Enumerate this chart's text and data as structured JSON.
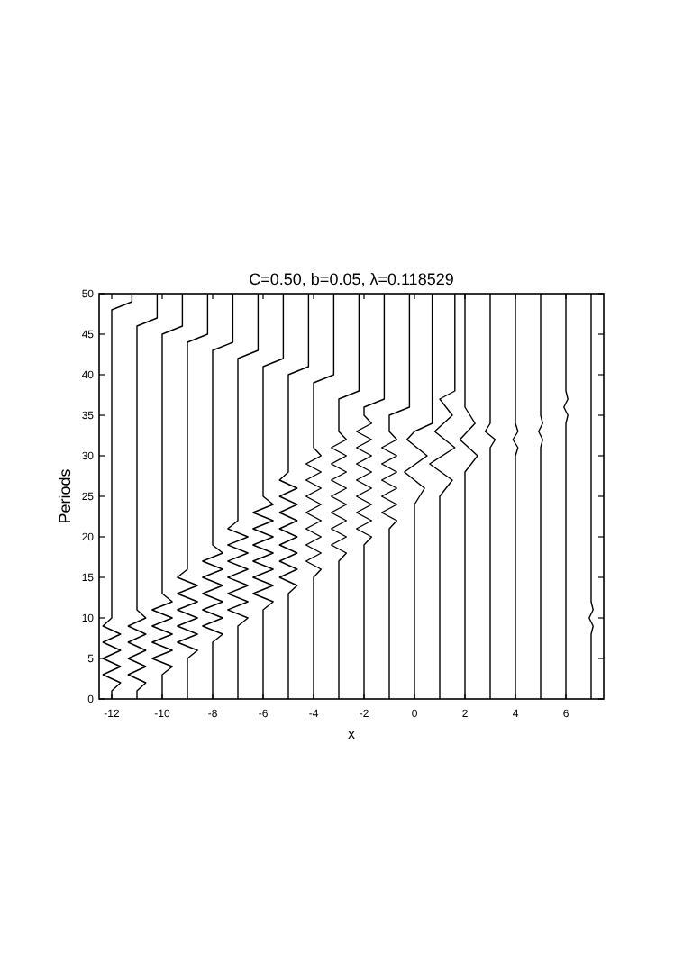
{
  "chart_data": {
    "type": "line",
    "title": "C=0.50, b=0.05, λ=0.118529",
    "xlabel": "x",
    "ylabel": "Periods",
    "xlim": [
      -12.5,
      7.5
    ],
    "ylim": [
      0,
      50
    ],
    "xticks": [
      -12,
      -10,
      -8,
      -6,
      -4,
      -2,
      0,
      2,
      4,
      6
    ],
    "yticks": [
      0,
      5,
      10,
      15,
      20,
      25,
      30,
      35,
      40,
      45,
      50
    ],
    "marker": "none",
    "line_style": "solid",
    "series": [
      {
        "color": "#000000",
        "x": [
          -12,
          -12,
          -11.65,
          -12.35,
          -11.65,
          -12.35,
          -11.65,
          -12.35,
          -11.65,
          -12.35,
          -12,
          -12,
          -11.2,
          -11.2
        ],
        "values": [
          0,
          1,
          2,
          3,
          4,
          5,
          6,
          7,
          8,
          9,
          10,
          48,
          49,
          50
        ]
      },
      {
        "color": "#000000",
        "x": [
          -11,
          -11,
          -10.65,
          -11.35,
          -10.65,
          -11.35,
          -10.65,
          -11.35,
          -10.65,
          -11.35,
          -10.65,
          -11,
          -11,
          -10.2,
          -10.2
        ],
        "values": [
          0,
          1,
          2,
          3,
          4,
          5,
          6,
          7,
          8,
          9,
          10,
          11,
          46,
          47,
          50
        ]
      },
      {
        "color": "#000000",
        "x": [
          -10,
          -10,
          -9.6,
          -10.4,
          -9.6,
          -10.4,
          -9.6,
          -10.4,
          -9.6,
          -10.4,
          -9.6,
          -10,
          -10,
          -9.2,
          -9.2
        ],
        "values": [
          0,
          3,
          4,
          5,
          6,
          7,
          8,
          9,
          10,
          11,
          12,
          13,
          45,
          46,
          50
        ]
      },
      {
        "color": "#000000",
        "x": [
          -9,
          -9,
          -8.6,
          -9.4,
          -8.6,
          -9.4,
          -8.6,
          -9.4,
          -8.6,
          -9.4,
          -8.6,
          -9.4,
          -9,
          -9,
          -8.2,
          -8.2
        ],
        "values": [
          0,
          5,
          6,
          7,
          8,
          9,
          10,
          11,
          12,
          13,
          14,
          15,
          16,
          44,
          45,
          50
        ]
      },
      {
        "color": "#000000",
        "x": [
          -8,
          -8,
          -7.6,
          -8.4,
          -7.6,
          -8.4,
          -7.6,
          -8.4,
          -7.6,
          -8.4,
          -7.6,
          -8.4,
          -7.6,
          -8,
          -8,
          -7.2,
          -7.2
        ],
        "values": [
          0,
          7,
          8,
          9,
          10,
          11,
          12,
          13,
          14,
          15,
          16,
          17,
          18,
          19,
          43,
          44,
          50
        ]
      },
      {
        "color": "#000000",
        "x": [
          -7,
          -7,
          -6.6,
          -7.4,
          -6.6,
          -7.4,
          -6.6,
          -7.4,
          -6.6,
          -7.4,
          -6.6,
          -7.4,
          -6.6,
          -7.4,
          -7,
          -7,
          -6.2,
          -6.2
        ],
        "values": [
          0,
          9,
          10,
          11,
          12,
          13,
          14,
          15,
          16,
          17,
          18,
          19,
          20,
          21,
          22,
          42,
          43,
          50
        ]
      },
      {
        "color": "#000000",
        "x": [
          -6,
          -6,
          -5.6,
          -6.4,
          -5.6,
          -6.4,
          -5.6,
          -6.4,
          -5.6,
          -6.4,
          -5.6,
          -6.4,
          -5.6,
          -6.4,
          -5.6,
          -6,
          -6,
          -5.2,
          -5.2
        ],
        "values": [
          0,
          11,
          12,
          13,
          14,
          15,
          16,
          17,
          18,
          19,
          20,
          21,
          22,
          23,
          24,
          25,
          41,
          42,
          50
        ]
      },
      {
        "color": "#000000",
        "x": [
          -5,
          -5,
          -4.65,
          -5.35,
          -4.65,
          -5.35,
          -4.65,
          -5.35,
          -4.65,
          -5.35,
          -4.65,
          -5.35,
          -4.65,
          -5.35,
          -4.65,
          -5.35,
          -5,
          -5,
          -4.2,
          -4.2
        ],
        "values": [
          0,
          13,
          14,
          15,
          16,
          17,
          18,
          19,
          20,
          21,
          22,
          23,
          24,
          25,
          26,
          27,
          28,
          40,
          41,
          50
        ]
      },
      {
        "color": "#000000",
        "x": [
          -4,
          -4,
          -3.7,
          -4.3,
          -3.7,
          -4.3,
          -3.7,
          -4.3,
          -3.7,
          -4.3,
          -3.7,
          -4.3,
          -3.7,
          -4.3,
          -3.7,
          -4.3,
          -3.7,
          -4,
          -4,
          -3.2,
          -3.2
        ],
        "values": [
          0,
          15,
          16,
          17,
          18,
          19,
          20,
          21,
          22,
          23,
          24,
          25,
          26,
          27,
          28,
          29,
          30,
          31,
          39,
          40,
          50
        ]
      },
      {
        "color": "#000000",
        "x": [
          -3,
          -3,
          -2.7,
          -3.3,
          -2.7,
          -3.3,
          -2.7,
          -3.3,
          -2.7,
          -3.3,
          -2.7,
          -3.3,
          -2.7,
          -3.3,
          -2.7,
          -3.3,
          -2.7,
          -3,
          -3,
          -2.2,
          -2.2
        ],
        "values": [
          0,
          17,
          18,
          19,
          20,
          21,
          22,
          23,
          24,
          25,
          26,
          27,
          28,
          29,
          30,
          31,
          32,
          33,
          37,
          38,
          50
        ]
      },
      {
        "color": "#000000",
        "x": [
          -2,
          -2,
          -1.7,
          -2.3,
          -1.7,
          -2.3,
          -1.7,
          -2.3,
          -1.7,
          -2.3,
          -1.7,
          -2.3,
          -1.7,
          -2.3,
          -1.7,
          -2.3,
          -1.7,
          -2,
          -2,
          -1.2,
          -1.2
        ],
        "values": [
          0,
          19,
          20,
          21,
          22,
          23,
          24,
          25,
          26,
          27,
          28,
          29,
          30,
          31,
          32,
          33,
          34,
          35,
          36,
          37,
          50
        ]
      },
      {
        "color": "#000000",
        "x": [
          -1,
          -1,
          -0.7,
          -1.3,
          -0.7,
          -1.3,
          -0.7,
          -1.3,
          -0.7,
          -1.3,
          -0.7,
          -1.3,
          -0.7,
          -1,
          -1,
          -0.2,
          -0.2
        ],
        "values": [
          0,
          21,
          22,
          23,
          24,
          25,
          26,
          27,
          28,
          29,
          30,
          31,
          32,
          33,
          35,
          36,
          50
        ]
      },
      {
        "color": "#000000",
        "x": [
          0,
          0,
          0.4,
          -0.4,
          0.5,
          -0.3,
          0,
          0.7,
          0.7
        ],
        "values": [
          0,
          24,
          26,
          28,
          30,
          32,
          33,
          34,
          50
        ]
      },
      {
        "color": "#000000",
        "x": [
          1,
          1,
          1.5,
          0.6,
          1.6,
          0.8,
          1.5,
          1,
          1.6,
          1.6
        ],
        "values": [
          0,
          25,
          27,
          29,
          31,
          33,
          35,
          37,
          38,
          50
        ]
      },
      {
        "color": "#000000",
        "x": [
          2,
          2,
          2.5,
          1.8,
          2.4,
          2,
          2
        ],
        "values": [
          0,
          28,
          30,
          32,
          34,
          36,
          50
        ]
      },
      {
        "color": "#000000",
        "x": [
          3,
          3,
          3.2,
          2.8,
          3,
          3
        ],
        "values": [
          0,
          31,
          32,
          33,
          34,
          50
        ]
      },
      {
        "color": "#000000",
        "x": [
          4,
          4,
          4.1,
          3.9,
          4.1,
          4,
          4
        ],
        "values": [
          0,
          30,
          31,
          32,
          33,
          34,
          50
        ]
      },
      {
        "color": "#000000",
        "x": [
          5,
          5,
          5.08,
          4.92,
          5.08,
          5,
          5
        ],
        "values": [
          0,
          31,
          32,
          33,
          34,
          35,
          50
        ]
      },
      {
        "color": "#000000",
        "x": [
          6,
          6,
          6.08,
          5.92,
          6.08,
          6,
          6
        ],
        "values": [
          0,
          34,
          35,
          36,
          37,
          38,
          50
        ]
      },
      {
        "color": "#000000",
        "x": [
          7,
          7,
          7.08,
          6.92,
          7.08,
          7,
          7
        ],
        "values": [
          0,
          8,
          9,
          10,
          11,
          12,
          50
        ]
      }
    ]
  }
}
